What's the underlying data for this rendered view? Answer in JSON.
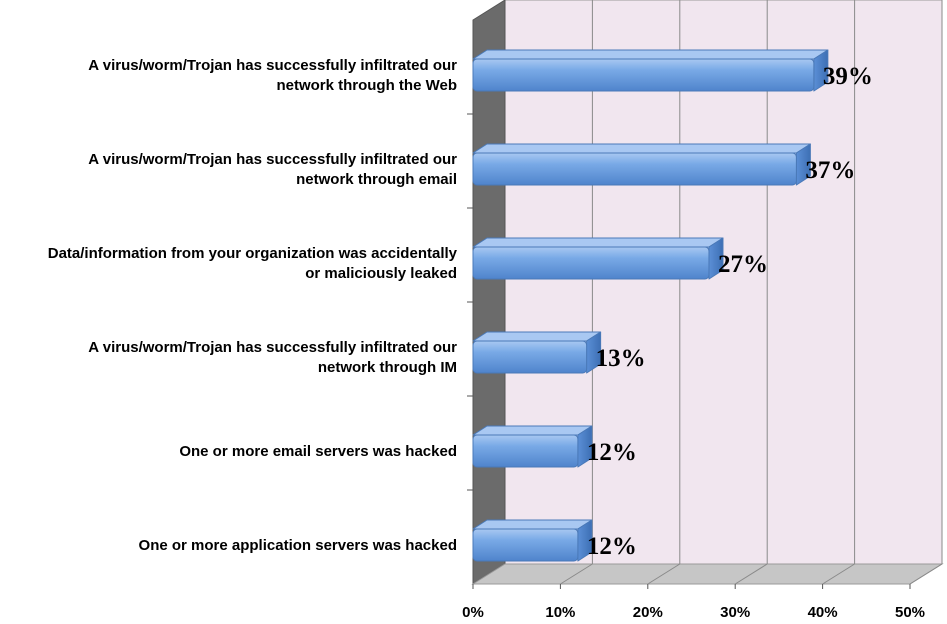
{
  "chart_data": {
    "type": "bar",
    "orientation": "horizontal",
    "style": "3d",
    "categories": [
      [
        "A virus/worm/Trojan has successfully infiltrated our",
        "network through the Web"
      ],
      [
        "A virus/worm/Trojan has successfully infiltrated our",
        "network through email"
      ],
      [
        "Data/information from your organization was accidentally",
        "or maliciously leaked"
      ],
      [
        "A virus/worm/Trojan has successfully infiltrated our",
        "network through IM"
      ],
      [
        "One or more email servers was hacked"
      ],
      [
        "One or more application servers was hacked"
      ]
    ],
    "values": [
      39,
      37,
      27,
      13,
      12,
      12
    ],
    "data_labels": [
      "39%",
      "37%",
      "27%",
      "13%",
      "12%",
      "12%"
    ],
    "x_ticks": [
      "0%",
      "10%",
      "20%",
      "30%",
      "40%",
      "50%"
    ],
    "xlim": [
      0,
      50
    ],
    "grid": true,
    "legend": "none",
    "colors": {
      "bar": "#6a9ee0",
      "bar_top": "#a9c8f2",
      "bar_shadow": "#3d6fb4",
      "bar_outline": "#4a79b8",
      "back_wall": "#f1e6ef",
      "side_wall": "#6b6b6b",
      "floor": "#c6c6c6",
      "grid": "#8a8a8a"
    }
  }
}
